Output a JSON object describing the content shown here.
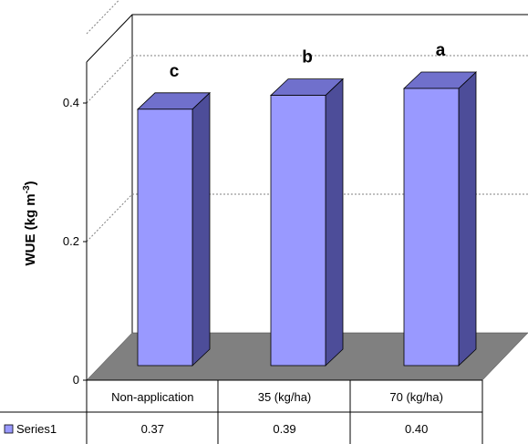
{
  "chart_data": {
    "type": "bar",
    "categories": [
      "Non-application",
      "35 (kg/ha)",
      "70 (kg/ha)"
    ],
    "series": [
      {
        "name": "Series1",
        "values": [
          0.37,
          0.39,
          0.4
        ]
      }
    ],
    "table_values": [
      "0.37",
      "0.39",
      "0.40"
    ],
    "significance_letters": [
      "c",
      "b",
      "a"
    ],
    "ylabel_main": "WUE (kg m",
    "ylabel_sup": "-3",
    "ylabel_close": ")",
    "yticks": [
      "0",
      "0.2",
      "0.4"
    ],
    "ylim": [
      0,
      0.5
    ],
    "grid": true,
    "legend": "data table, bottom-left",
    "colors": {
      "bar_front": "#9999ff",
      "bar_side": "#4d4d99",
      "bar_top": "#7070cc",
      "floor": "#808080",
      "grid": "#808080"
    }
  }
}
